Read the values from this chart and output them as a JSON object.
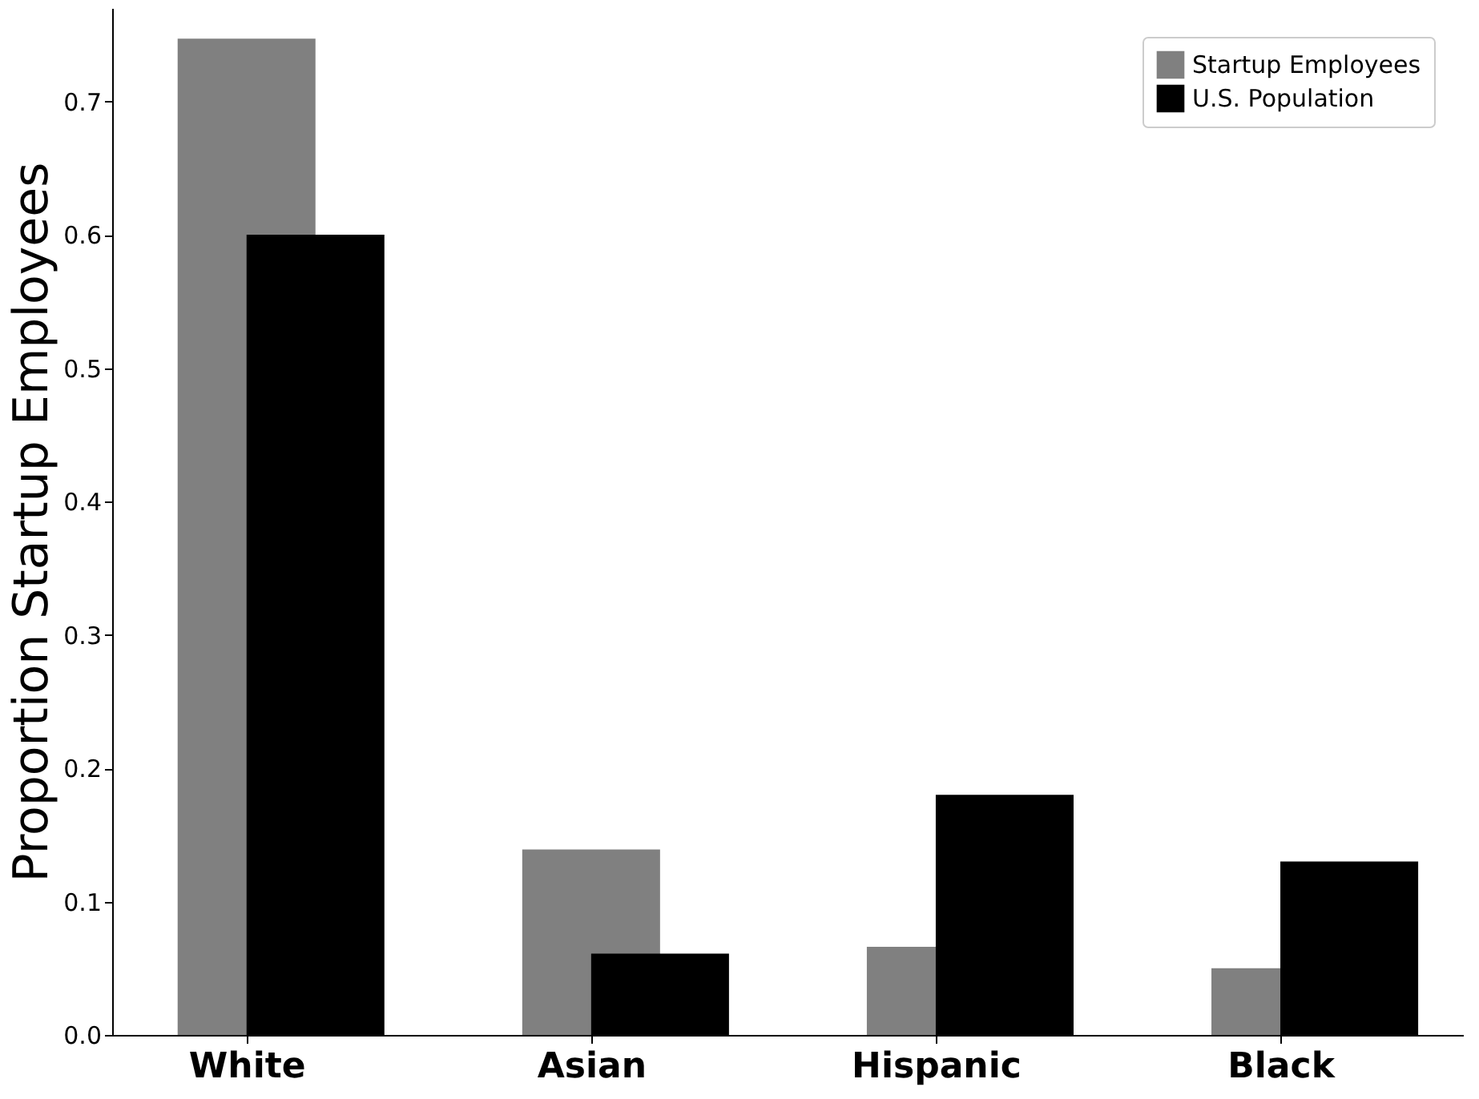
{
  "chart_data": {
    "type": "bar",
    "ylabel": "Proportion Startup Employees",
    "categories": [
      "White",
      "Asian",
      "Hispanic",
      "Black"
    ],
    "series": [
      {
        "name": "Startup Employees",
        "color": "#808080",
        "values": [
          0.747,
          0.139,
          0.066,
          0.05
        ]
      },
      {
        "name": "U.S. Population",
        "color": "#000000",
        "values": [
          0.6,
          0.061,
          0.18,
          0.13
        ]
      }
    ],
    "ylim": [
      0,
      0.77
    ],
    "yticks": [
      {
        "value": 0,
        "label": "0.0"
      },
      {
        "value": 0.1,
        "label": "0.1"
      },
      {
        "value": 0.2,
        "label": "0.2"
      },
      {
        "value": 0.3,
        "label": "0.3"
      },
      {
        "value": 0.4,
        "label": "0.4"
      },
      {
        "value": 0.5,
        "label": "0.5"
      },
      {
        "value": 0.6,
        "label": "0.6"
      },
      {
        "value": 0.7,
        "label": "0.7"
      }
    ],
    "grid": false,
    "legend": "top right"
  }
}
